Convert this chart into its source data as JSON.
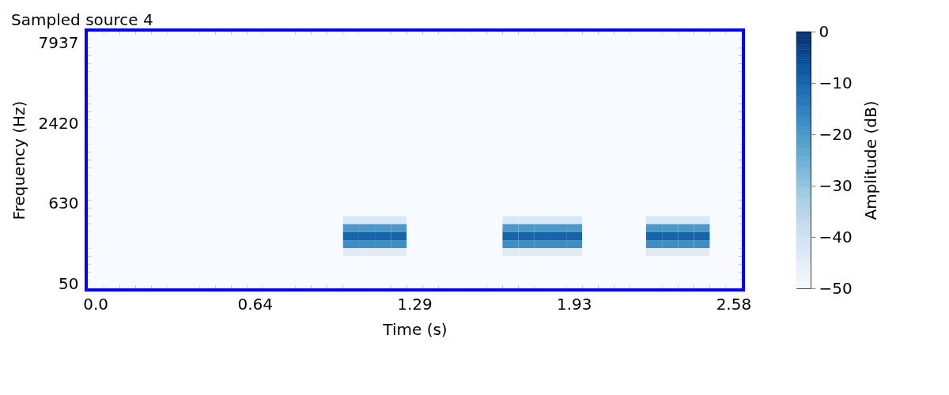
{
  "chart_data": {
    "type": "heatmap",
    "title": "Sampled source 4",
    "xlabel": "Time (s)",
    "ylabel": "Frequency (Hz)",
    "clabel": "Amplitude (dB)",
    "categories": [
      "0.0",
      null,
      null,
      null,
      null,
      null,
      null,
      null,
      null,
      null,
      "0.64",
      null,
      null,
      null,
      null,
      null,
      null,
      null,
      null,
      null,
      "1.29",
      null,
      null,
      null,
      null,
      null,
      null,
      null,
      null,
      null,
      "1.93",
      null,
      null,
      null,
      null,
      null,
      null,
      null,
      null,
      null,
      "2.58"
    ],
    "y_categories": [
      null,
      "7937",
      null,
      null,
      null,
      null,
      null,
      null,
      null,
      null,
      null,
      "2420",
      null,
      null,
      null,
      null,
      null,
      null,
      null,
      null,
      null,
      "630",
      null,
      null,
      null,
      null,
      null,
      null,
      null,
      null,
      null,
      "50"
    ],
    "clim": [
      -50,
      0
    ],
    "cticks": [
      -50,
      -40,
      -30,
      -20,
      -10,
      0
    ],
    "grid": false,
    "cells": [
      [
        -50,
        -50,
        -50,
        -50,
        -50,
        -50,
        -50,
        -50,
        -50,
        -50,
        -50,
        -50,
        -50,
        -50,
        -50,
        -50,
        -50,
        -50,
        -50,
        -50,
        -50,
        -50,
        -50,
        -50,
        -50,
        -50,
        -50,
        -50,
        -50,
        -50,
        -50,
        -50,
        -50,
        -50,
        -50,
        -50,
        -50,
        -50,
        -50,
        -50,
        -50
      ],
      [
        -50,
        -50,
        -50,
        -50,
        -50,
        -50,
        -50,
        -50,
        -50,
        -50,
        -50,
        -50,
        -50,
        -50,
        -50,
        -50,
        -50,
        -50,
        -50,
        -50,
        -50,
        -50,
        -50,
        -50,
        -50,
        -50,
        -50,
        -50,
        -50,
        -50,
        -50,
        -50,
        -50,
        -50,
        -50,
        -50,
        -50,
        -50,
        -50,
        -50,
        -50
      ],
      [
        -50,
        -50,
        -50,
        -50,
        -50,
        -50,
        -50,
        -50,
        -50,
        -50,
        -50,
        -50,
        -50,
        -50,
        -50,
        -50,
        -50,
        -50,
        -50,
        -50,
        -50,
        -50,
        -50,
        -50,
        -50,
        -50,
        -50,
        -50,
        -50,
        -50,
        -50,
        -50,
        -50,
        -50,
        -50,
        -50,
        -50,
        -50,
        -50,
        -50,
        -50
      ],
      [
        -50,
        -50,
        -50,
        -50,
        -50,
        -50,
        -50,
        -50,
        -50,
        -50,
        -50,
        -50,
        -50,
        -50,
        -50,
        -50,
        -50,
        -50,
        -50,
        -50,
        -50,
        -50,
        -50,
        -50,
        -50,
        -50,
        -50,
        -50,
        -50,
        -50,
        -50,
        -50,
        -50,
        -50,
        -50,
        -50,
        -50,
        -50,
        -50,
        -50,
        -50
      ],
      [
        -50,
        -50,
        -50,
        -50,
        -50,
        -50,
        -50,
        -50,
        -50,
        -50,
        -50,
        -50,
        -50,
        -50,
        -50,
        -50,
        -50,
        -50,
        -50,
        -50,
        -50,
        -50,
        -50,
        -50,
        -50,
        -50,
        -50,
        -50,
        -50,
        -50,
        -50,
        -50,
        -50,
        -50,
        -50,
        -50,
        -50,
        -50,
        -50,
        -50,
        -50
      ],
      [
        -50,
        -50,
        -50,
        -50,
        -50,
        -50,
        -50,
        -50,
        -50,
        -50,
        -50,
        -50,
        -50,
        -50,
        -50,
        -50,
        -50,
        -50,
        -50,
        -50,
        -50,
        -50,
        -50,
        -50,
        -50,
        -50,
        -50,
        -50,
        -50,
        -50,
        -50,
        -50,
        -50,
        -50,
        -50,
        -50,
        -50,
        -50,
        -50,
        -50,
        -50
      ],
      [
        -50,
        -50,
        -50,
        -50,
        -50,
        -50,
        -50,
        -50,
        -50,
        -50,
        -50,
        -50,
        -50,
        -50,
        -50,
        -50,
        -50,
        -50,
        -50,
        -50,
        -50,
        -50,
        -50,
        -50,
        -50,
        -50,
        -50,
        -50,
        -50,
        -50,
        -50,
        -50,
        -50,
        -50,
        -50,
        -50,
        -50,
        -50,
        -50,
        -50,
        -50
      ],
      [
        -50,
        -50,
        -50,
        -50,
        -50,
        -50,
        -50,
        -50,
        -50,
        -50,
        -50,
        -50,
        -50,
        -50,
        -50,
        -50,
        -50,
        -50,
        -50,
        -50,
        -50,
        -50,
        -50,
        -50,
        -50,
        -50,
        -50,
        -50,
        -50,
        -50,
        -50,
        -50,
        -50,
        -50,
        -50,
        -50,
        -50,
        -50,
        -50,
        -50,
        -50
      ],
      [
        -50,
        -50,
        -50,
        -50,
        -50,
        -50,
        -50,
        -50,
        -50,
        -50,
        -50,
        -50,
        -50,
        -50,
        -50,
        -50,
        -50,
        -50,
        -50,
        -50,
        -50,
        -50,
        -50,
        -50,
        -50,
        -50,
        -50,
        -50,
        -50,
        -50,
        -50,
        -50,
        -50,
        -50,
        -50,
        -50,
        -50,
        -50,
        -50,
        -50,
        -50
      ],
      [
        -50,
        -50,
        -50,
        -50,
        -50,
        -50,
        -50,
        -50,
        -50,
        -50,
        -50,
        -50,
        -50,
        -50,
        -50,
        -50,
        -50,
        -50,
        -50,
        -50,
        -50,
        -50,
        -50,
        -50,
        -50,
        -50,
        -50,
        -50,
        -50,
        -50,
        -50,
        -50,
        -50,
        -50,
        -50,
        -50,
        -50,
        -50,
        -50,
        -50,
        -50
      ],
      [
        -50,
        -50,
        -50,
        -50,
        -50,
        -50,
        -50,
        -50,
        -50,
        -50,
        -50,
        -50,
        -50,
        -50,
        -50,
        -50,
        -50,
        -50,
        -50,
        -50,
        -50,
        -50,
        -50,
        -50,
        -50,
        -50,
        -50,
        -50,
        -50,
        -50,
        -50,
        -50,
        -50,
        -50,
        -50,
        -50,
        -50,
        -50,
        -50,
        -50,
        -50
      ],
      [
        -50,
        -50,
        -50,
        -50,
        -50,
        -50,
        -50,
        -50,
        -50,
        -50,
        -50,
        -50,
        -50,
        -50,
        -50,
        -50,
        -50,
        -50,
        -50,
        -50,
        -50,
        -50,
        -50,
        -50,
        -50,
        -50,
        -50,
        -50,
        -50,
        -50,
        -50,
        -50,
        -50,
        -50,
        -50,
        -50,
        -50,
        -50,
        -50,
        -50,
        -50
      ],
      [
        -50,
        -50,
        -50,
        -50,
        -50,
        -50,
        -50,
        -50,
        -50,
        -50,
        -50,
        -50,
        -50,
        -50,
        -50,
        -50,
        -50,
        -50,
        -50,
        -50,
        -50,
        -50,
        -50,
        -50,
        -50,
        -50,
        -50,
        -50,
        -50,
        -50,
        -50,
        -50,
        -50,
        -50,
        -50,
        -50,
        -50,
        -50,
        -50,
        -50,
        -50
      ],
      [
        -50,
        -50,
        -50,
        -50,
        -50,
        -50,
        -50,
        -50,
        -50,
        -50,
        -50,
        -50,
        -50,
        -50,
        -50,
        -50,
        -50,
        -50,
        -50,
        -50,
        -50,
        -50,
        -50,
        -50,
        -50,
        -50,
        -50,
        -50,
        -50,
        -50,
        -50,
        -50,
        -50,
        -50,
        -50,
        -50,
        -50,
        -50,
        -50,
        -50,
        -50
      ],
      [
        -50,
        -50,
        -50,
        -50,
        -50,
        -50,
        -50,
        -50,
        -50,
        -50,
        -50,
        -50,
        -50,
        -50,
        -50,
        -50,
        -50,
        -50,
        -50,
        -50,
        -50,
        -50,
        -50,
        -50,
        -50,
        -50,
        -50,
        -50,
        -50,
        -50,
        -50,
        -50,
        -50,
        -50,
        -50,
        -50,
        -50,
        -50,
        -50,
        -50,
        -50
      ],
      [
        -50,
        -50,
        -50,
        -50,
        -50,
        -50,
        -50,
        -50,
        -50,
        -50,
        -50,
        -50,
        -50,
        -50,
        -50,
        -50,
        -50,
        -50,
        -50,
        -50,
        -50,
        -50,
        -50,
        -50,
        -50,
        -50,
        -50,
        -50,
        -50,
        -50,
        -50,
        -50,
        -50,
        -50,
        -50,
        -50,
        -50,
        -50,
        -50,
        -50,
        -50
      ],
      [
        -50,
        -50,
        -50,
        -50,
        -50,
        -50,
        -50,
        -50,
        -50,
        -50,
        -50,
        -50,
        -50,
        -50,
        -50,
        -50,
        -50,
        -50,
        -50,
        -50,
        -50,
        -50,
        -50,
        -50,
        -50,
        -50,
        -50,
        -50,
        -50,
        -50,
        -50,
        -50,
        -50,
        -50,
        -50,
        -50,
        -50,
        -50,
        -50,
        -50,
        -50
      ],
      [
        -50,
        -50,
        -50,
        -50,
        -50,
        -50,
        -50,
        -50,
        -50,
        -50,
        -50,
        -50,
        -50,
        -50,
        -50,
        -50,
        -50,
        -50,
        -50,
        -50,
        -50,
        -50,
        -50,
        -50,
        -50,
        -50,
        -50,
        -50,
        -50,
        -50,
        -50,
        -50,
        -50,
        -50,
        -50,
        -50,
        -50,
        -50,
        -50,
        -50,
        -50
      ],
      [
        -50,
        -50,
        -50,
        -50,
        -50,
        -50,
        -50,
        -50,
        -50,
        -50,
        -50,
        -50,
        -50,
        -50,
        -50,
        -50,
        -50,
        -50,
        -50,
        -50,
        -50,
        -50,
        -50,
        -50,
        -50,
        -50,
        -50,
        -50,
        -50,
        -50,
        -50,
        -50,
        -50,
        -50,
        -50,
        -50,
        -50,
        -50,
        -50,
        -50,
        -50
      ],
      [
        -50,
        -50,
        -50,
        -50,
        -50,
        -50,
        -50,
        -50,
        -50,
        -50,
        -50,
        -50,
        -50,
        -50,
        -50,
        -50,
        -50,
        -50,
        -50,
        -50,
        -50,
        -50,
        -50,
        -50,
        -50,
        -50,
        -50,
        -50,
        -50,
        -50,
        -50,
        -50,
        -50,
        -50,
        -50,
        -50,
        -50,
        -50,
        -50,
        -50,
        -50
      ],
      [
        -50,
        -50,
        -50,
        -50,
        -50,
        -50,
        -50,
        -50,
        -50,
        -50,
        -50,
        -50,
        -50,
        -50,
        -50,
        -50,
        -50,
        -50,
        -50,
        -50,
        -50,
        -50,
        -50,
        -50,
        -50,
        -50,
        -50,
        -50,
        -50,
        -50,
        -50,
        -50,
        -50,
        -50,
        -50,
        -50,
        -50,
        -50,
        -50,
        -50,
        -50
      ],
      [
        -50,
        -50,
        -50,
        -50,
        -50,
        -50,
        -50,
        -50,
        -50,
        -50,
        -50,
        -50,
        -50,
        -50,
        -50,
        -50,
        -50,
        -50,
        -50,
        -50,
        -50,
        -50,
        -50,
        -50,
        -50,
        -50,
        -50,
        -50,
        -50,
        -50,
        -50,
        -50,
        -50,
        -50,
        -50,
        -50,
        -50,
        -50,
        -50,
        -50,
        -50
      ],
      [
        -50,
        -50,
        -50,
        -50,
        -50,
        -50,
        -50,
        -50,
        -50,
        -50,
        -50,
        -50,
        -50,
        -50,
        -50,
        -50,
        -50,
        -50,
        -50,
        -50,
        -50,
        -50,
        -50,
        -50,
        -50,
        -50,
        -50,
        -50,
        -50,
        -50,
        -50,
        -50,
        -50,
        -50,
        -50,
        -50,
        -50,
        -50,
        -50,
        -50,
        -50
      ],
      [
        -50,
        -50,
        -50,
        -50,
        -50,
        -50,
        -50,
        -50,
        -50,
        -50,
        -50,
        -50,
        -50,
        -50,
        -50,
        -50,
        -42,
        -42,
        -42,
        -42,
        -50,
        -50,
        -50,
        -50,
        -50,
        -50,
        -42,
        -42,
        -42,
        -42,
        -42,
        -50,
        -50,
        -50,
        -50,
        -42,
        -42,
        -42,
        -42,
        -50,
        -50
      ],
      [
        -50,
        -50,
        -50,
        -50,
        -50,
        -50,
        -50,
        -50,
        -50,
        -50,
        -50,
        -50,
        -50,
        -50,
        -50,
        -50,
        -20,
        -20,
        -20,
        -20,
        -50,
        -50,
        -50,
        -50,
        -50,
        -50,
        -20,
        -20,
        -20,
        -20,
        -20,
        -50,
        -50,
        -50,
        -50,
        -20,
        -20,
        -20,
        -20,
        -50,
        -50
      ],
      [
        -50,
        -50,
        -50,
        -50,
        -50,
        -50,
        -50,
        -50,
        -50,
        -50,
        -50,
        -50,
        -50,
        -50,
        -50,
        -50,
        -10,
        -10,
        -10,
        -10,
        -50,
        -50,
        -50,
        -50,
        -50,
        -50,
        -10,
        -10,
        -10,
        -10,
        -10,
        -50,
        -50,
        -50,
        -50,
        -10,
        -10,
        -10,
        -10,
        -50,
        -50
      ],
      [
        -50,
        -50,
        -50,
        -50,
        -50,
        -50,
        -50,
        -50,
        -50,
        -50,
        -50,
        -50,
        -50,
        -50,
        -50,
        -50,
        -18,
        -18,
        -18,
        -18,
        -50,
        -50,
        -50,
        -50,
        -50,
        -50,
        -18,
        -18,
        -18,
        -18,
        -18,
        -50,
        -50,
        -50,
        -50,
        -18,
        -18,
        -18,
        -18,
        -50,
        -50
      ],
      [
        -50,
        -50,
        -50,
        -50,
        -50,
        -50,
        -50,
        -50,
        -50,
        -50,
        -50,
        -50,
        -50,
        -50,
        -50,
        -50,
        -44,
        -44,
        -44,
        -44,
        -50,
        -50,
        -50,
        -50,
        -50,
        -50,
        -44,
        -44,
        -44,
        -44,
        -44,
        -50,
        -50,
        -50,
        -50,
        -44,
        -44,
        -44,
        -44,
        -50,
        -50
      ],
      [
        -50,
        -50,
        -50,
        -50,
        -50,
        -50,
        -50,
        -50,
        -50,
        -50,
        -50,
        -50,
        -50,
        -50,
        -50,
        -50,
        -50,
        -50,
        -50,
        -50,
        -50,
        -50,
        -50,
        -50,
        -50,
        -50,
        -50,
        -50,
        -50,
        -50,
        -50,
        -50,
        -50,
        -50,
        -50,
        -50,
        -50,
        -50,
        -50,
        -50,
        -50
      ],
      [
        -50,
        -50,
        -50,
        -50,
        -50,
        -50,
        -50,
        -50,
        -50,
        -50,
        -50,
        -50,
        -50,
        -50,
        -50,
        -50,
        -50,
        -50,
        -50,
        -50,
        -50,
        -50,
        -50,
        -50,
        -50,
        -50,
        -50,
        -50,
        -50,
        -50,
        -50,
        -50,
        -50,
        -50,
        -50,
        -50,
        -50,
        -50,
        -50,
        -50,
        -50
      ],
      [
        -50,
        -50,
        -50,
        -50,
        -50,
        -50,
        -50,
        -50,
        -50,
        -50,
        -50,
        -50,
        -50,
        -50,
        -50,
        -50,
        -50,
        -50,
        -50,
        -50,
        -50,
        -50,
        -50,
        -50,
        -50,
        -50,
        -50,
        -50,
        -50,
        -50,
        -50,
        -50,
        -50,
        -50,
        -50,
        -50,
        -50,
        -50,
        -50,
        -50,
        -50
      ],
      [
        -50,
        -50,
        -50,
        -50,
        -50,
        -50,
        -50,
        -50,
        -50,
        -50,
        -50,
        -50,
        -50,
        -50,
        -50,
        -50,
        -50,
        -50,
        -50,
        -50,
        -50,
        -50,
        -50,
        -50,
        -50,
        -50,
        -50,
        -50,
        -50,
        -50,
        -50,
        -50,
        -50,
        -50,
        -50,
        -50,
        -50,
        -50,
        -50,
        -50,
        -50
      ]
    ]
  }
}
